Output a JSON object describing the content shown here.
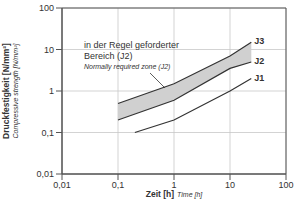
{
  "chart_data": {
    "type": "line",
    "log": true,
    "grid": true,
    "xlabel": [
      "Zeit [h]",
      "Time [h]"
    ],
    "ylabel": [
      "Druckfestigkeit [N/mm²]",
      "Compressive strength [N/mm²]"
    ],
    "xlim": [
      0.01,
      100
    ],
    "ylim": [
      0.01,
      100
    ],
    "xticks": [
      {
        "value": 0.01,
        "label": "0,01"
      },
      {
        "value": 0.1,
        "label": "0,1"
      },
      1,
      10,
      100
    ],
    "yticks": [
      {
        "value": 0.01,
        "label": "0,01"
      },
      {
        "value": 0.1,
        "label": "0,1"
      },
      1,
      10,
      100
    ],
    "series": [
      {
        "name": "J1",
        "color": "#333333",
        "x": [
          0.2,
          1,
          10,
          24
        ],
        "values": [
          0.1,
          0.2,
          1,
          2
        ]
      },
      {
        "name": "J2",
        "color": "#333333",
        "x": [
          0.1,
          1,
          10,
          24
        ],
        "values": [
          0.2,
          0.6,
          3.5,
          5
        ]
      },
      {
        "name": "J3",
        "color": "#333333",
        "x": [
          0.1,
          1,
          10,
          24
        ],
        "values": [
          0.5,
          1.5,
          7,
          15
        ]
      }
    ],
    "band": {
      "lower": "J2",
      "upper": "J3",
      "color": "#d0d0d0"
    },
    "annotation": [
      "in der Regel geforderter",
      "Bereich (J2)",
      "Normally required zone (J2)"
    ]
  }
}
